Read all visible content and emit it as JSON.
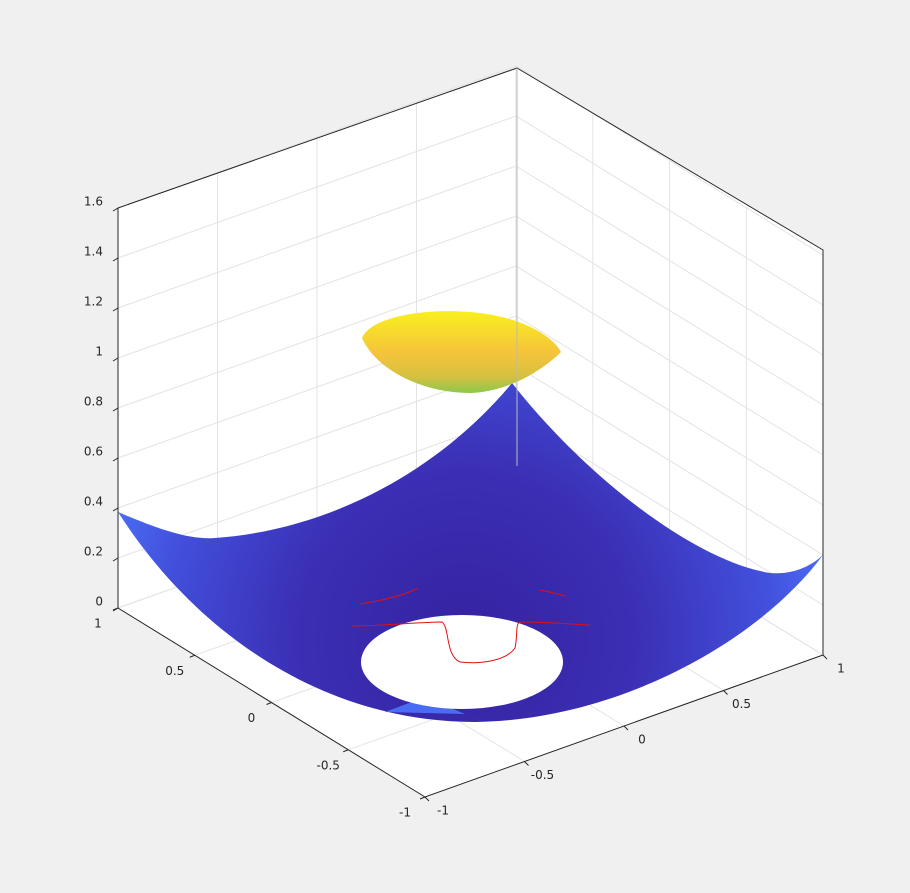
{
  "chart_data": {
    "type": "surface",
    "xlim": [
      -1,
      1
    ],
    "ylim": [
      -1,
      1
    ],
    "zlim": [
      0,
      1.6
    ],
    "xticks": [
      -1,
      -0.5,
      0,
      0.5,
      1
    ],
    "yticks": [
      -1,
      -0.5,
      0,
      0.5,
      1
    ],
    "zticks": [
      0,
      0.2,
      0.4,
      0.6,
      0.8,
      1,
      1.2,
      1.4,
      1.6
    ],
    "grid": true
  }
}
